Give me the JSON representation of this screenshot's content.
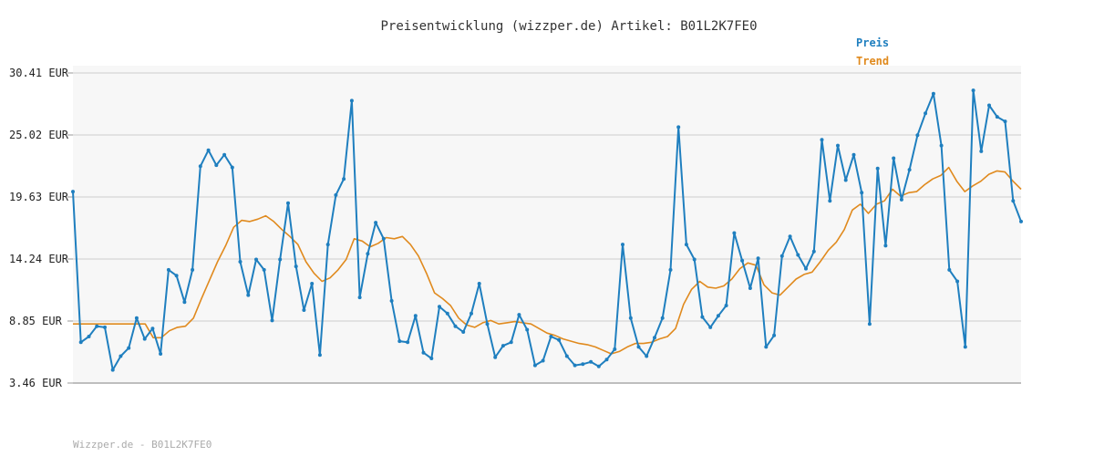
{
  "chart_data": {
    "type": "line",
    "title": "Preisentwicklung (wizzper.de) Artikel: B01L2K7FE0",
    "footer": "Wizzper.de - B01L2K7FE0",
    "ylim": [
      3.46,
      30.41
    ],
    "y_ticks": [
      "30.41 EUR",
      "25.02 EUR",
      "19.63 EUR",
      "14.24 EUR",
      "8.85 EUR",
      "3.46 EUR"
    ],
    "y_tick_values": [
      30.41,
      25.02,
      19.63,
      14.24,
      8.85,
      3.46
    ],
    "grid": true,
    "legend_position": "top-right",
    "series": [
      {
        "name": "Preis",
        "color": "#1f7fbf",
        "markers": true,
        "values": [
          20.1,
          7.0,
          7.5,
          8.4,
          8.3,
          4.6,
          5.8,
          6.5,
          9.1,
          7.3,
          8.2,
          6.0,
          13.3,
          12.8,
          10.5,
          13.3,
          22.3,
          23.7,
          22.4,
          23.3,
          22.2,
          14.0,
          11.1,
          14.2,
          13.3,
          8.9,
          14.2,
          19.1,
          13.6,
          9.8,
          12.1,
          5.9,
          15.5,
          19.8,
          21.2,
          28.0,
          10.9,
          14.7,
          17.4,
          16.0,
          10.6,
          7.1,
          7.0,
          9.3,
          6.1,
          5.6,
          10.1,
          9.5,
          8.4,
          7.9,
          9.5,
          12.1,
          8.6,
          5.7,
          6.7,
          7.0,
          9.4,
          8.1,
          5.0,
          5.4,
          7.5,
          7.2,
          5.8,
          5.0,
          5.1,
          5.3,
          4.9,
          5.5,
          6.4,
          15.5,
          9.1,
          6.6,
          5.8,
          7.4,
          9.1,
          13.3,
          25.7,
          15.5,
          14.2,
          9.2,
          8.3,
          9.3,
          10.2,
          16.5,
          14.1,
          11.7,
          14.3,
          6.6,
          7.6,
          14.5,
          16.2,
          14.6,
          13.4,
          14.9,
          24.6,
          19.3,
          24.1,
          21.1,
          23.3,
          20.0,
          8.6,
          22.1,
          15.4,
          23.0,
          19.4,
          22.0,
          25.0,
          26.9,
          28.6,
          24.1,
          13.3,
          12.3,
          6.6,
          28.9,
          23.6,
          27.6,
          26.6,
          26.2,
          19.3,
          17.5
        ]
      },
      {
        "name": "Trend",
        "color": "#e08a1e",
        "markers": false,
        "values": [
          8.6,
          8.6,
          8.6,
          8.6,
          8.6,
          8.6,
          8.6,
          8.6,
          8.6,
          8.6,
          7.4,
          7.4,
          8.0,
          8.3,
          8.4,
          9.1,
          10.8,
          12.4,
          14.0,
          15.4,
          17.0,
          17.6,
          17.5,
          17.7,
          18.0,
          17.5,
          16.8,
          16.2,
          15.5,
          14.0,
          13.0,
          12.3,
          12.6,
          13.3,
          14.2,
          16.0,
          15.8,
          15.3,
          15.6,
          16.1,
          16.0,
          16.2,
          15.5,
          14.5,
          13.0,
          11.3,
          10.8,
          10.2,
          9.1,
          8.5,
          8.3,
          8.7,
          8.9,
          8.6,
          8.7,
          8.8,
          8.7,
          8.6,
          8.2,
          7.8,
          7.6,
          7.3,
          7.1,
          6.9,
          6.8,
          6.6,
          6.3,
          6.0,
          6.2,
          6.6,
          6.9,
          6.9,
          7.0,
          7.3,
          7.5,
          8.2,
          10.3,
          11.6,
          12.3,
          11.8,
          11.7,
          11.9,
          12.5,
          13.4,
          13.9,
          13.7,
          12.0,
          11.3,
          11.1,
          11.8,
          12.5,
          12.9,
          13.1,
          14.0,
          15.0,
          15.7,
          16.8,
          18.5,
          19.0,
          18.2,
          19.0,
          19.3,
          20.3,
          19.7,
          20.0,
          20.1,
          20.7,
          21.2,
          21.5,
          22.2,
          21.0,
          20.1,
          20.6,
          21.0,
          21.6,
          21.9,
          21.8,
          21.0,
          20.3
        ]
      }
    ]
  }
}
